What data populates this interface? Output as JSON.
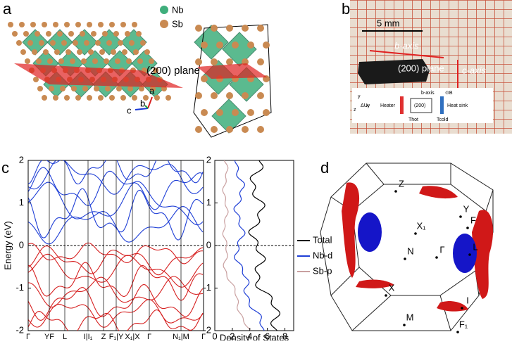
{
  "panel_a": {
    "label": "a",
    "legend": [
      "Nb",
      "Sb"
    ],
    "plane": "(200) plane",
    "axes": [
      "c",
      "b",
      "a"
    ]
  },
  "panel_b": {
    "label": "b",
    "scale": "5 mm",
    "b_axis": "b-axis",
    "plane": "(200) plane",
    "c_axis": "c-axis",
    "inset": {
      "voltage": "ΔUy",
      "heater": "Heater",
      "plane": "(200)",
      "b_axis": "b-axis",
      "field": "⊙B",
      "sink": "Heat sink",
      "t_hot": "Thot",
      "t_cold": "Tcold",
      "y": "y",
      "x": "x",
      "z": "z"
    }
  },
  "panel_c": {
    "label": "c",
    "band_plot": {
      "ylabel": "Energy (eV)",
      "ylim": [
        -2,
        2
      ],
      "yticks": [
        -2,
        -1,
        0,
        1,
        2
      ],
      "kpoints": [
        "Γ",
        "YF",
        "L",
        "I|I₁",
        "Z",
        "F₁|Y",
        "X₁|X",
        "Γ",
        "N₁|M",
        "Γ"
      ]
    },
    "dos_plot": {
      "xlabel": "Density of States",
      "xlim": [
        0,
        9
      ],
      "xticks": [
        0,
        2,
        4,
        6,
        8
      ],
      "ylim": [
        -2,
        2
      ],
      "yticks": [
        -2,
        -1,
        0,
        1,
        2
      ],
      "legend": [
        {
          "name": "Total",
          "color": "#000000"
        },
        {
          "name": "Nb-d",
          "color": "#1f3fd6"
        },
        {
          "name": "Sb-p",
          "color": "#c9a0a0"
        }
      ]
    }
  },
  "panel_d": {
    "label": "d",
    "points": [
      "Z",
      "Y",
      "X₁",
      "F",
      "Γ",
      "N",
      "L",
      "X",
      "I",
      "M",
      "F₁"
    ]
  }
}
